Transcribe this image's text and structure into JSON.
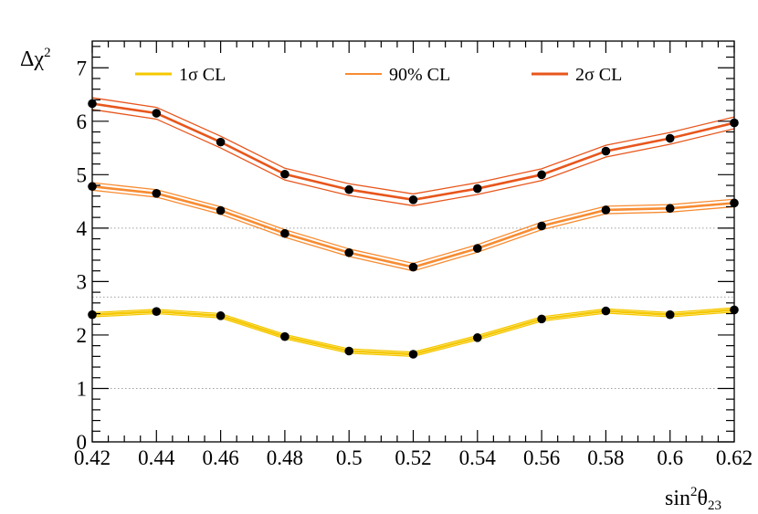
{
  "chart_data": {
    "type": "line",
    "title": "",
    "xlabel": {
      "prefix": "sin",
      "sup": "2",
      "symbol": "θ",
      "sub": "23"
    },
    "ylabel": {
      "symbol": "Δχ",
      "sup": "2"
    },
    "xlim": [
      0.42,
      0.62
    ],
    "ylim": [
      0,
      7.5
    ],
    "x": [
      0.42,
      0.44,
      0.46,
      0.48,
      0.5,
      0.52,
      0.54,
      0.56,
      0.58,
      0.6,
      0.62
    ],
    "x_tick_labels": [
      "0.42",
      "0.44",
      "0.46",
      "0.48",
      "0.5",
      "0.52",
      "0.54",
      "0.56",
      "0.58",
      "0.6",
      "0.62"
    ],
    "y_ticks": [
      0,
      1,
      2,
      3,
      4,
      5,
      6,
      7
    ],
    "y_tick_labels": [
      "0",
      "1",
      "2",
      "3",
      "4",
      "5",
      "6",
      "7"
    ],
    "reference_lines": [
      1.0,
      2.71,
      4.0
    ],
    "legend_position": "top",
    "series": [
      {
        "name": "1σ CL",
        "color": "#f5c800",
        "values": [
          2.38,
          2.44,
          2.36,
          1.97,
          1.7,
          1.64,
          1.95,
          2.3,
          2.45,
          2.38,
          2.47
        ],
        "band_halfwidth": 0.04
      },
      {
        "name": "90% CL",
        "color": "#f78c32",
        "values": [
          4.78,
          4.65,
          4.33,
          3.9,
          3.54,
          3.27,
          3.62,
          4.04,
          4.34,
          4.37,
          4.47
        ],
        "band_halfwidth": 0.07
      },
      {
        "name": "2σ CL",
        "color": "#e8561c",
        "values": [
          6.33,
          6.15,
          5.61,
          5.01,
          4.72,
          4.53,
          4.74,
          5.0,
          5.44,
          5.68,
          5.97
        ],
        "band_halfwidth": 0.11
      }
    ]
  }
}
